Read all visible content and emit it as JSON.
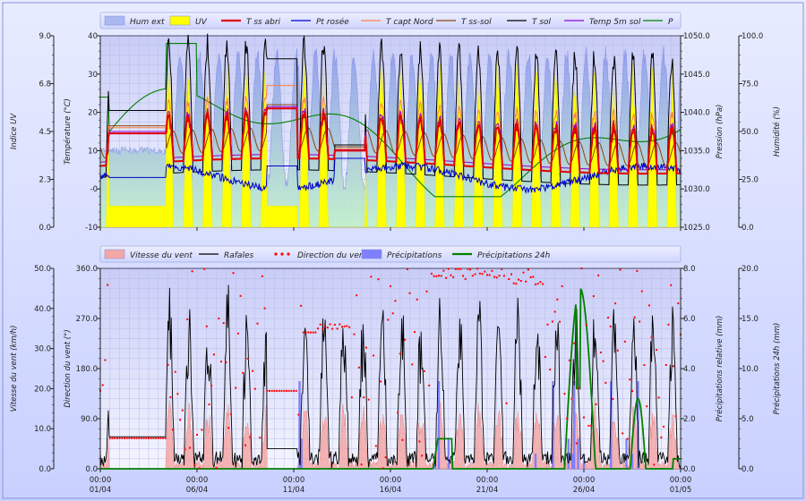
{
  "chart_data": [
    {
      "type": "line",
      "legend": [
        "Hum ext",
        "UV",
        "T ss abri",
        "Pt rosée",
        "T capt Nord",
        "T ss-sol",
        "T sol",
        "Temp 5m sol",
        "P"
      ],
      "series_colors": [
        "#a9b8f2",
        "#ffff00",
        "#e00000",
        "#0000cc",
        "#ff8040",
        "#8b4513",
        "#000000",
        "#9400d3",
        "#008000"
      ],
      "x_ticks": [
        {
          "time": "00:00",
          "date": "01/04"
        },
        {
          "time": "00:00",
          "date": "06/04"
        },
        {
          "time": "00:00",
          "date": "11/04"
        },
        {
          "time": "00:00",
          "date": "16/04"
        },
        {
          "time": "00:00",
          "date": "21/04"
        },
        {
          "time": "00:00",
          "date": "26/04"
        },
        {
          "time": "00:00",
          "date": "01/05"
        }
      ],
      "axes": {
        "uv": {
          "label": "Indice  UV",
          "ticks": [
            "9.0",
            "6.8",
            "4.5",
            "2.3",
            "0.0"
          ],
          "range": [
            0,
            9
          ]
        },
        "temp": {
          "label": "Température  (°C)",
          "ticks": [
            "40",
            "30",
            "20",
            "10",
            "-0",
            "-10"
          ],
          "range": [
            -10,
            40
          ]
        },
        "pressure": {
          "label": "Pression  (hPa)",
          "ticks": [
            "1050.0",
            "1045.0",
            "1040.0",
            "1035.0",
            "1030.0",
            "1025.0"
          ],
          "range": [
            1025,
            1050
          ]
        },
        "humidity": {
          "label": "Humidité  (%)",
          "ticks": [
            "100.0",
            "75.0",
            "50.0",
            "25.0",
            "0.0"
          ],
          "range": [
            0,
            100
          ]
        }
      },
      "x_range_days": [
        0,
        30
      ],
      "summary": {
        "t_ss_abri_daily_range_c": [
          2,
          22
        ],
        "humidity_range_pct": [
          20,
          98
        ],
        "pressure_range_hpa": [
          1029,
          1050
        ],
        "uv_peak": 8
      }
    },
    {
      "type": "line",
      "legend": [
        "Vitesse du vent",
        "Rafales",
        "Direction du vent",
        "Précipitations",
        "Précipitations 24h"
      ],
      "series_colors": [
        "#f3a7a7",
        "#000000",
        "#ff0000",
        "#8080ff",
        "#008000"
      ],
      "x_ticks": [
        {
          "time": "00:00",
          "date": "01/04"
        },
        {
          "time": "00:00",
          "date": "06/04"
        },
        {
          "time": "00:00",
          "date": "11/04"
        },
        {
          "time": "00:00",
          "date": "16/04"
        },
        {
          "time": "00:00",
          "date": "21/04"
        },
        {
          "time": "00:00",
          "date": "26/04"
        },
        {
          "time": "00:00",
          "date": "01/05"
        }
      ],
      "axes": {
        "speed": {
          "label": "Vitesse du vent  (km/h)",
          "ticks": [
            "50.0",
            "40.0",
            "30.0",
            "20.0",
            "10.0",
            "0.0"
          ],
          "range": [
            0,
            50
          ]
        },
        "direction": {
          "label": "Direction du vent  (°)",
          "ticks": [
            "360.0",
            "270.0",
            "180.0",
            "90.0",
            "0.0"
          ],
          "range": [
            0,
            360
          ]
        },
        "precip": {
          "label": "Précipitations relative  (mm)",
          "ticks": [
            "8.0",
            "6.0",
            "4.0",
            "2.0",
            "0.0"
          ],
          "range": [
            0,
            8
          ]
        },
        "precip24": {
          "label": "Précipitations 24h  (mm)",
          "ticks": [
            "20.0",
            "15.0",
            "10.0",
            "5.0",
            "0.0"
          ],
          "range": [
            0,
            20
          ]
        }
      },
      "x_range_days": [
        0,
        30
      ],
      "summary": {
        "wind_speed_typical_kmh": [
          0,
          15
        ],
        "gust_peak_kmh": 45,
        "precip24_peak_mm": 18
      }
    }
  ]
}
